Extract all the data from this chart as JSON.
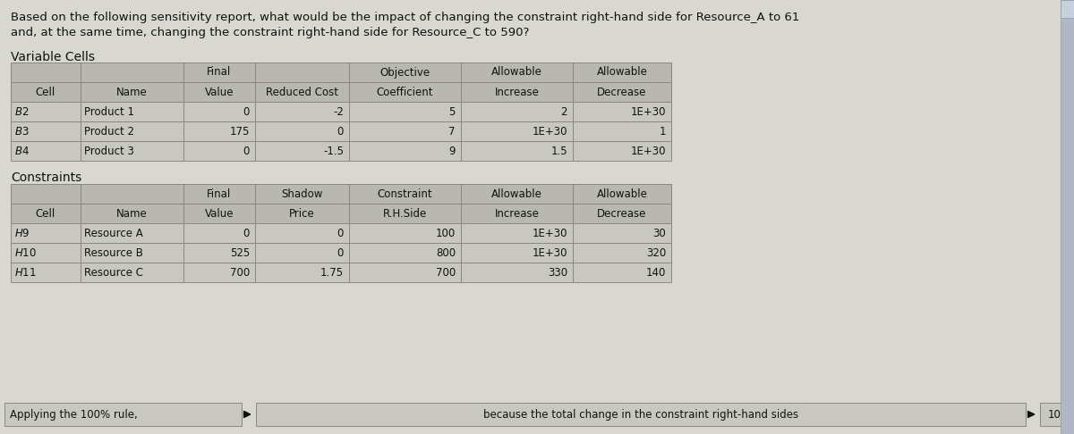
{
  "title_line1": "Based on the following sensitivity report, what would be the impact of changing the constraint right-hand side for Resource_A to 61",
  "title_line2": "and, at the same time, changing the constraint right-hand side for Resource_C to 590?",
  "section1_title": "Variable Cells",
  "section2_title": "Constraints",
  "var_header_r1": [
    "",
    "",
    "Final",
    "",
    "Objective",
    "Allowable",
    "Allowable"
  ],
  "var_header_r2": [
    "Cell",
    "Name",
    "Value",
    "Reduced Cost",
    "Coefficient",
    "Increase",
    "Decrease"
  ],
  "var_rows": [
    [
      "$B$2",
      "Product 1",
      "0",
      "-2",
      "5",
      "2",
      "1E+30"
    ],
    [
      "$B$3",
      "Product 2",
      "175",
      "0",
      "7",
      "1E+30",
      "1"
    ],
    [
      "$B$4",
      "Product 3",
      "0",
      "-1.5",
      "9",
      "1.5",
      "1E+30"
    ]
  ],
  "con_header_r1": [
    "",
    "",
    "Final",
    "Shadow",
    "Constraint",
    "Allowable",
    "Allowable"
  ],
  "con_header_r2": [
    "Cell",
    "Name",
    "Value",
    "Price",
    "R.H.Side",
    "Increase",
    "Decrease"
  ],
  "con_rows": [
    [
      "$H$9",
      "Resource A",
      "0",
      "0",
      "100",
      "1E+30",
      "30"
    ],
    [
      "$H$10",
      "Resource B",
      "525",
      "0",
      "800",
      "1E+30",
      "320"
    ],
    [
      "$H$11",
      "Resource C",
      "700",
      "1.75",
      "700",
      "330",
      "140"
    ]
  ],
  "bottom_left": "Applying the 100% rule,",
  "bottom_middle": "because the total change in the constraint right-hand sides",
  "bottom_right": "10",
  "bg_color": "#d8d8d0",
  "table_cell_bg": "#c8c8c0",
  "header_cell_bg": "#b8b8b0",
  "text_color": "#111111",
  "border_color": "#888880",
  "bottom_cell_bg": "#c8c8c0",
  "scroll_bar_color": "#8899aa"
}
